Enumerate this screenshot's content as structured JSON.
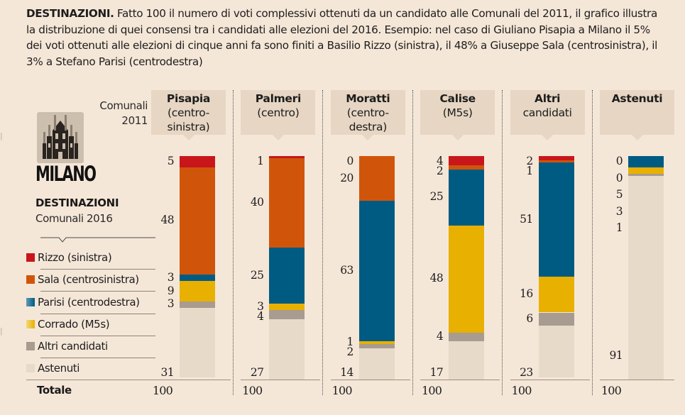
{
  "intro": {
    "heading": "DESTINAZIONI.",
    "text": " Fatto 100 il numero di voti complessivi ottenuti da un candidato alle Comunali del 2011, il grafico illustra la distribuzione di quei consensi tra i candidati alle elezioni del 2016. Esempio: nel caso di Giuliano Pisapia a Milano il 5% dei voti ottenuti alle elezioni di cinque anni fa sono finiti a Basilio Rizzo (sinistra), il 48% a Giuseppe Sala (centrosinistra), il 3% a Stefano Parisi (centrodestra)"
  },
  "city": {
    "icon": "duomo-milano-icon",
    "name": "MILANO"
  },
  "destinations_title": "DESTINAZIONI",
  "destinations_subtitle": "Comunali 2016",
  "origin_label_line1": "Comunali",
  "origin_label_line2": "2011",
  "totale_label": "Totale",
  "colors": {
    "background": "#f5e7d8",
    "header_box": "#e6d6c3",
    "rizzo": "#c8161b",
    "sala": "#d0550b",
    "parisi": "#005b82",
    "corrado": "#e8b000",
    "altri": "#a89b8f",
    "astenuti": "#e8dac9"
  },
  "chart_data": {
    "type": "bar",
    "stacked": true,
    "title": "DESTINAZIONI Comunali 2016 — Milano",
    "xlabel": "Comunali 2011",
    "ylabel": "",
    "ylim": [
      0,
      100
    ],
    "categories": [
      {
        "name": "Pisapia",
        "sub": "(centro-\nsinistra)"
      },
      {
        "name": "Palmeri",
        "sub": "(centro)"
      },
      {
        "name": "Moratti",
        "sub": "(centro-\ndestra)"
      },
      {
        "name": "Calise",
        "sub": "(M5s)"
      },
      {
        "name": "Altri",
        "sub": "candidati"
      },
      {
        "name": "Astenuti",
        "sub": ""
      }
    ],
    "series": [
      {
        "key": "rizzo",
        "name": "Rizzo (sinistra)",
        "values": [
          5,
          1,
          0,
          4,
          2,
          0
        ]
      },
      {
        "key": "sala",
        "name": "Sala (centrosinistra)",
        "values": [
          48,
          40,
          20,
          2,
          1,
          0
        ]
      },
      {
        "key": "parisi",
        "name": "Parisi (centrodestra)",
        "values": [
          3,
          25,
          63,
          25,
          51,
          5
        ]
      },
      {
        "key": "corrado",
        "name": "Corrado (M5s)",
        "values": [
          9,
          3,
          1,
          48,
          16,
          3
        ]
      },
      {
        "key": "altri",
        "name": "Altri candidati",
        "values": [
          3,
          4,
          2,
          4,
          6,
          1
        ]
      },
      {
        "key": "astenuti",
        "name": "Astenuti",
        "values": [
          31,
          27,
          14,
          17,
          23,
          91
        ]
      }
    ],
    "data_labels": [
      [
        "5",
        "48",
        "3",
        "9",
        "3",
        "31"
      ],
      [
        "1",
        "40",
        "25",
        "3",
        "4",
        "27"
      ],
      [
        "0",
        "20",
        "63",
        "1",
        "2",
        "14"
      ],
      [
        "4",
        "2",
        "25",
        "48",
        "4",
        "17"
      ],
      [
        "2",
        "1",
        "51",
        "16",
        "6",
        "23"
      ],
      [
        "0",
        "0",
        "5",
        "3",
        "1",
        "91"
      ]
    ],
    "totals": [
      "100",
      "100",
      "100",
      "100",
      "100",
      "100"
    ],
    "legend": [
      "Rizzo (sinistra)",
      "Sala (centrosinistra)",
      "Parisi (centrodestra)",
      "Corrado (M5s)",
      "Altri candidati",
      "Astenuti"
    ],
    "legend_position": "left",
    "grid": false
  }
}
